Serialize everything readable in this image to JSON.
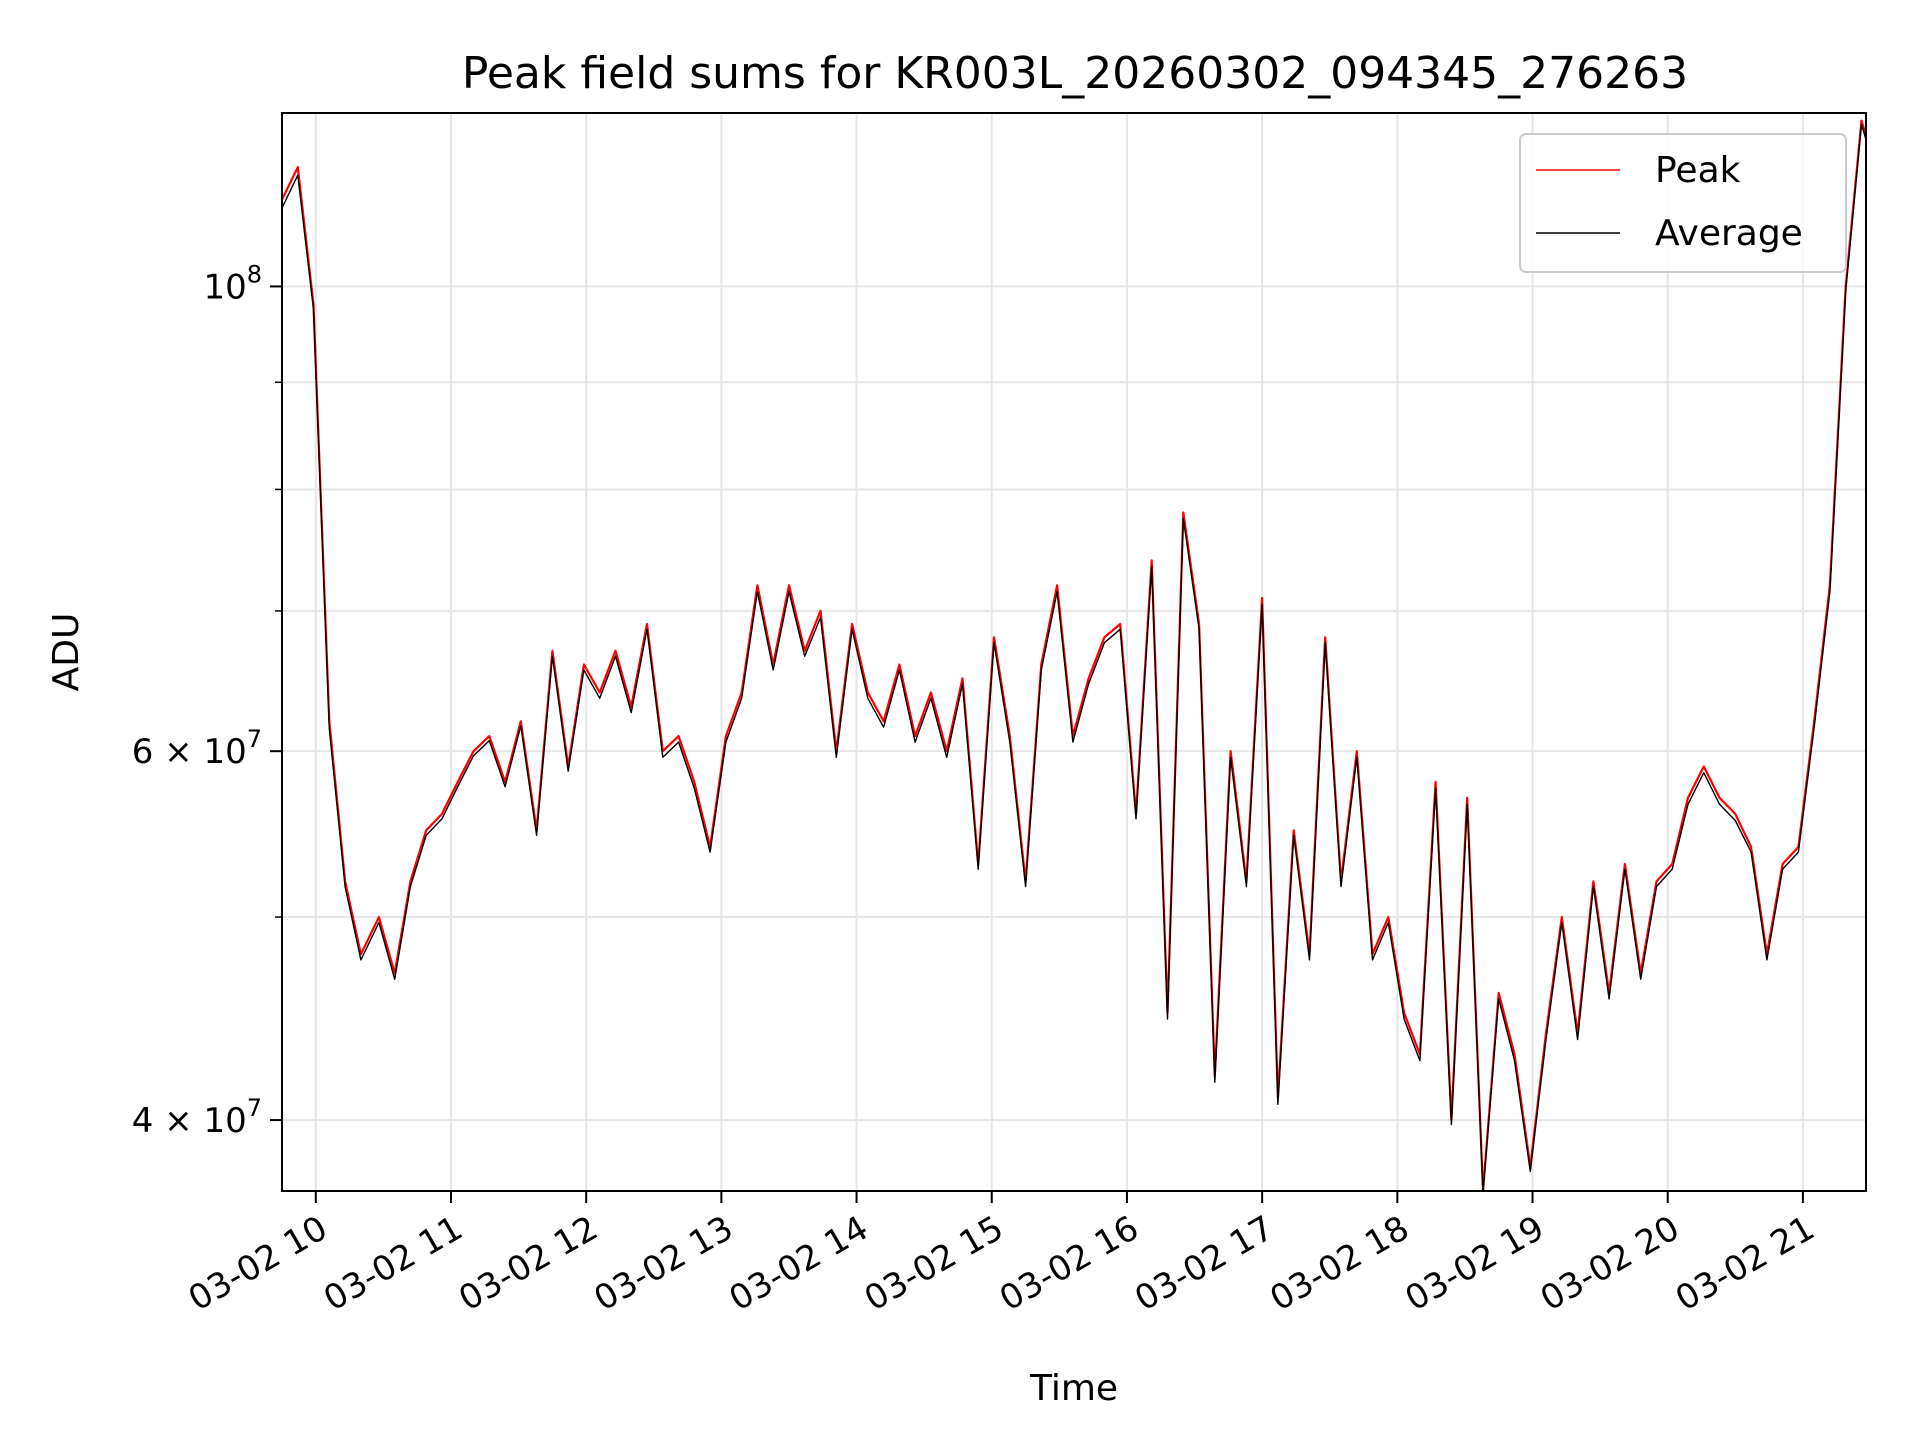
{
  "chart_data": {
    "type": "line",
    "title": "Peak field sums for KR003L_20260302_094345_276263",
    "xlabel": "Time",
    "ylabel": "ADU",
    "x_start": "2026-03-02 09:45",
    "x_end": "2026-03-02 21:28",
    "xlim": [
      "2026-03-02 09:45",
      "2026-03-02 21:28"
    ],
    "ylim": [
      37000000,
      121000000
    ],
    "yscale": "log",
    "grid": true,
    "legend_position": "top-right",
    "x_ticks": [
      {
        "value": "2026-03-02 10:00",
        "label": "03-02 10"
      },
      {
        "value": "2026-03-02 11:00",
        "label": "03-02 11"
      },
      {
        "value": "2026-03-02 12:00",
        "label": "03-02 12"
      },
      {
        "value": "2026-03-02 13:00",
        "label": "03-02 13"
      },
      {
        "value": "2026-03-02 14:00",
        "label": "03-02 14"
      },
      {
        "value": "2026-03-02 15:00",
        "label": "03-02 15"
      },
      {
        "value": "2026-03-02 16:00",
        "label": "03-02 16"
      },
      {
        "value": "2026-03-02 17:00",
        "label": "03-02 17"
      },
      {
        "value": "2026-03-02 18:00",
        "label": "03-02 18"
      },
      {
        "value": "2026-03-02 19:00",
        "label": "03-02 19"
      },
      {
        "value": "2026-03-02 20:00",
        "label": "03-02 20"
      },
      {
        "value": "2026-03-02 21:00",
        "label": "03-02 21"
      }
    ],
    "y_ticks_major": [
      {
        "value": 40000000,
        "mantissa": "4",
        "base": "10",
        "exp": "7"
      },
      {
        "value": 60000000,
        "mantissa": "6",
        "base": "10",
        "exp": "7"
      },
      {
        "value": 100000000,
        "mantissa": "",
        "base": "10",
        "exp": "8"
      }
    ],
    "y_ticks_minor": [
      50000000,
      70000000,
      80000000,
      90000000
    ],
    "series": [
      {
        "name": "Peak",
        "color": "#ff0000",
        "x": [
          "2026-03-02 09:45",
          "2026-03-02 09:52",
          "2026-03-02 09:59",
          "2026-03-02 10:06",
          "2026-03-02 10:13",
          "2026-03-02 10:20",
          "2026-03-02 10:28",
          "2026-03-02 10:35",
          "2026-03-02 10:42",
          "2026-03-02 10:49",
          "2026-03-02 10:56",
          "2026-03-02 11:03",
          "2026-03-02 11:10",
          "2026-03-02 11:17",
          "2026-03-02 11:24",
          "2026-03-02 11:31",
          "2026-03-02 11:38",
          "2026-03-02 11:45",
          "2026-03-02 11:52",
          "2026-03-02 11:59",
          "2026-03-02 12:06",
          "2026-03-02 12:13",
          "2026-03-02 12:20",
          "2026-03-02 12:27",
          "2026-03-02 12:34",
          "2026-03-02 12:41",
          "2026-03-02 12:48",
          "2026-03-02 12:55",
          "2026-03-02 13:02",
          "2026-03-02 13:09",
          "2026-03-02 13:16",
          "2026-03-02 13:23",
          "2026-03-02 13:30",
          "2026-03-02 13:37",
          "2026-03-02 13:44",
          "2026-03-02 13:51",
          "2026-03-02 13:58",
          "2026-03-02 14:05",
          "2026-03-02 14:12",
          "2026-03-02 14:19",
          "2026-03-02 14:26",
          "2026-03-02 14:33",
          "2026-03-02 14:40",
          "2026-03-02 14:47",
          "2026-03-02 14:54",
          "2026-03-02 15:01",
          "2026-03-02 15:08",
          "2026-03-02 15:15",
          "2026-03-02 15:22",
          "2026-03-02 15:29",
          "2026-03-02 15:36",
          "2026-03-02 15:43",
          "2026-03-02 15:50",
          "2026-03-02 15:57",
          "2026-03-02 16:04",
          "2026-03-02 16:11",
          "2026-03-02 16:18",
          "2026-03-02 16:25",
          "2026-03-02 16:32",
          "2026-03-02 16:39",
          "2026-03-02 16:46",
          "2026-03-02 16:53",
          "2026-03-02 17:00",
          "2026-03-02 17:07",
          "2026-03-02 17:14",
          "2026-03-02 17:21",
          "2026-03-02 17:28",
          "2026-03-02 17:35",
          "2026-03-02 17:42",
          "2026-03-02 17:49",
          "2026-03-02 17:56",
          "2026-03-02 18:03",
          "2026-03-02 18:10",
          "2026-03-02 18:17",
          "2026-03-02 18:24",
          "2026-03-02 18:31",
          "2026-03-02 18:38",
          "2026-03-02 18:45",
          "2026-03-02 18:52",
          "2026-03-02 18:59",
          "2026-03-02 19:06",
          "2026-03-02 19:13",
          "2026-03-02 19:20",
          "2026-03-02 19:27",
          "2026-03-02 19:34",
          "2026-03-02 19:41",
          "2026-03-02 19:48",
          "2026-03-02 19:55",
          "2026-03-02 20:02",
          "2026-03-02 20:09",
          "2026-03-02 20:16",
          "2026-03-02 20:23",
          "2026-03-02 20:30",
          "2026-03-02 20:37",
          "2026-03-02 20:44",
          "2026-03-02 20:51",
          "2026-03-02 20:58",
          "2026-03-02 21:05",
          "2026-03-02 21:12",
          "2026-03-02 21:19",
          "2026-03-02 21:26",
          "2026-03-02 21:28"
        ],
        "values": [
          110000000,
          114000000,
          98000000,
          62000000,
          52000000,
          48000000,
          50000000,
          47000000,
          52000000,
          55000000,
          56000000,
          58000000,
          60000000,
          61000000,
          58000000,
          62000000,
          55000000,
          67000000,
          59000000,
          66000000,
          64000000,
          67000000,
          63000000,
          69000000,
          60000000,
          61000000,
          58000000,
          54000000,
          61000000,
          64000000,
          72000000,
          66000000,
          72000000,
          67000000,
          70000000,
          60000000,
          69000000,
          64000000,
          62000000,
          66000000,
          61000000,
          64000000,
          60000000,
          65000000,
          53000000,
          68000000,
          61000000,
          52000000,
          66000000,
          72000000,
          61000000,
          65000000,
          68000000,
          69000000,
          56000000,
          74000000,
          45000000,
          78000000,
          69000000,
          42000000,
          60000000,
          52000000,
          71000000,
          41000000,
          55000000,
          48000000,
          68000000,
          52000000,
          60000000,
          48000000,
          50000000,
          45000000,
          43000000,
          58000000,
          40000000,
          57000000,
          37000000,
          46000000,
          43000000,
          38000000,
          44000000,
          50000000,
          44000000,
          52000000,
          46000000,
          53000000,
          47000000,
          52000000,
          53000000,
          57000000,
          59000000,
          57000000,
          56000000,
          54000000,
          48000000,
          53000000,
          54000000,
          62000000,
          72000000,
          100000000,
          120000000,
          118000000
        ]
      },
      {
        "name": "Average",
        "color": "#000000",
        "x": [
          "2026-03-02 09:45",
          "2026-03-02 09:52",
          "2026-03-02 09:59",
          "2026-03-02 10:06",
          "2026-03-02 10:13",
          "2026-03-02 10:20",
          "2026-03-02 10:28",
          "2026-03-02 10:35",
          "2026-03-02 10:42",
          "2026-03-02 10:49",
          "2026-03-02 10:56",
          "2026-03-02 11:03",
          "2026-03-02 11:10",
          "2026-03-02 11:17",
          "2026-03-02 11:24",
          "2026-03-02 11:31",
          "2026-03-02 11:38",
          "2026-03-02 11:45",
          "2026-03-02 11:52",
          "2026-03-02 11:59",
          "2026-03-02 12:06",
          "2026-03-02 12:13",
          "2026-03-02 12:20",
          "2026-03-02 12:27",
          "2026-03-02 12:34",
          "2026-03-02 12:41",
          "2026-03-02 12:48",
          "2026-03-02 12:55",
          "2026-03-02 13:02",
          "2026-03-02 13:09",
          "2026-03-02 13:16",
          "2026-03-02 13:23",
          "2026-03-02 13:30",
          "2026-03-02 13:37",
          "2026-03-02 13:44",
          "2026-03-02 13:51",
          "2026-03-02 13:58",
          "2026-03-02 14:05",
          "2026-03-02 14:12",
          "2026-03-02 14:19",
          "2026-03-02 14:26",
          "2026-03-02 14:33",
          "2026-03-02 14:40",
          "2026-03-02 14:47",
          "2026-03-02 14:54",
          "2026-03-02 15:01",
          "2026-03-02 15:08",
          "2026-03-02 15:15",
          "2026-03-02 15:22",
          "2026-03-02 15:29",
          "2026-03-02 15:36",
          "2026-03-02 15:43",
          "2026-03-02 15:50",
          "2026-03-02 15:57",
          "2026-03-02 16:04",
          "2026-03-02 16:11",
          "2026-03-02 16:18",
          "2026-03-02 16:25",
          "2026-03-02 16:32",
          "2026-03-02 16:39",
          "2026-03-02 16:46",
          "2026-03-02 16:53",
          "2026-03-02 17:00",
          "2026-03-02 17:07",
          "2026-03-02 17:14",
          "2026-03-02 17:21",
          "2026-03-02 17:28",
          "2026-03-02 17:35",
          "2026-03-02 17:42",
          "2026-03-02 17:49",
          "2026-03-02 17:56",
          "2026-03-02 18:03",
          "2026-03-02 18:10",
          "2026-03-02 18:17",
          "2026-03-02 18:24",
          "2026-03-02 18:31",
          "2026-03-02 18:38",
          "2026-03-02 18:45",
          "2026-03-02 18:52",
          "2026-03-02 18:59",
          "2026-03-02 19:06",
          "2026-03-02 19:13",
          "2026-03-02 19:20",
          "2026-03-02 19:27",
          "2026-03-02 19:34",
          "2026-03-02 19:41",
          "2026-03-02 19:48",
          "2026-03-02 19:55",
          "2026-03-02 20:02",
          "2026-03-02 20:09",
          "2026-03-02 20:16",
          "2026-03-02 20:23",
          "2026-03-02 20:30",
          "2026-03-02 20:37",
          "2026-03-02 20:44",
          "2026-03-02 20:51",
          "2026-03-02 20:58",
          "2026-03-02 21:05",
          "2026-03-02 21:12",
          "2026-03-02 21:19",
          "2026-03-02 21:26",
          "2026-03-02 21:28"
        ],
        "values": [
          109000000,
          113000000,
          97500000,
          61500000,
          51700000,
          47700000,
          49700000,
          46700000,
          51700000,
          54700000,
          55700000,
          57700000,
          59700000,
          60700000,
          57700000,
          61700000,
          54700000,
          66600000,
          58700000,
          65600000,
          63600000,
          66600000,
          62600000,
          68600000,
          59600000,
          60600000,
          57600000,
          53700000,
          60600000,
          63600000,
          71500000,
          65600000,
          71500000,
          66600000,
          69500000,
          59600000,
          68600000,
          63600000,
          61600000,
          65600000,
          60600000,
          63600000,
          59600000,
          64600000,
          52700000,
          67600000,
          60600000,
          51700000,
          65600000,
          71500000,
          60600000,
          64600000,
          67600000,
          68600000,
          55700000,
          73500000,
          44700000,
          77500000,
          68600000,
          41700000,
          59600000,
          51700000,
          70500000,
          40700000,
          54700000,
          47700000,
          67600000,
          51700000,
          59600000,
          47700000,
          49700000,
          44700000,
          42700000,
          57600000,
          39800000,
          56600000,
          36900000,
          45700000,
          42700000,
          37800000,
          43700000,
          49700000,
          43700000,
          51700000,
          45700000,
          52700000,
          46700000,
          51700000,
          52700000,
          56600000,
          58600000,
          56600000,
          55600000,
          53700000,
          47700000,
          52700000,
          53700000,
          61600000,
          71500000,
          99500000,
          119500000,
          117500000
        ]
      }
    ]
  }
}
